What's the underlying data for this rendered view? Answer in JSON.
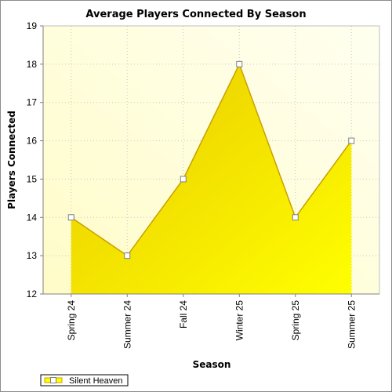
{
  "chart_data": {
    "type": "area",
    "title": "Average Players Connected By Season",
    "xlabel": "Season",
    "ylabel": "Players Connected",
    "categories": [
      "Spring 24",
      "Summer 24",
      "Fall 24",
      "Winter 25",
      "Spring 25",
      "Summer 25"
    ],
    "series": [
      {
        "name": "Silent Heaven",
        "values": [
          14,
          13,
          15,
          18,
          14,
          16
        ]
      }
    ],
    "ylim": [
      12,
      19
    ],
    "yticks": [
      "12",
      "13",
      "14",
      "15",
      "16",
      "17",
      "18",
      "19"
    ],
    "grid": true,
    "legend_position": "bottom-left",
    "colors": {
      "fill_light": "#ffff00",
      "fill_dark": "#e8c800",
      "line": "#c8a000",
      "plot_bg_light": "#fffff0",
      "plot_bg_dark": "#fffcc8",
      "marker_fill": "#ffffff",
      "marker_stroke": "#808080"
    }
  }
}
